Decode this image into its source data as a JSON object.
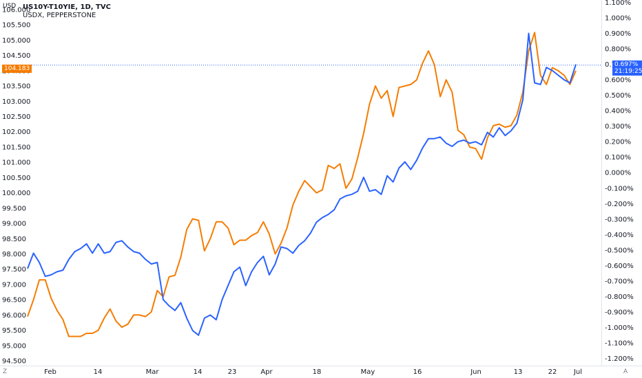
{
  "header": {
    "title": "US10Y-T10YIE, 1D, TVC",
    "subtitle": "USDX, PEPPERSTONE"
  },
  "left_axis_unit": "USD",
  "corner_left": "Z",
  "corner_right": "A",
  "badges": {
    "left_value": "104.183",
    "right_value": "0.697%",
    "right_time": "21:19:25"
  },
  "colors": {
    "orange": "#f57c00",
    "blue": "#2962ff",
    "badge_blue": "#2962ff"
  },
  "chart_data": {
    "type": "line",
    "x_ticks": [
      "Feb",
      "14",
      "Mar",
      "14",
      "23",
      "Apr",
      "18",
      "May",
      "16",
      "Jun",
      "13",
      "22",
      "Jul"
    ],
    "left_axis": {
      "min": 94.5,
      "max": 106.0,
      "ticks": [
        "106.000",
        "105.500",
        "105.000",
        "104.500",
        "104.000",
        "103.500",
        "103.000",
        "102.500",
        "102.000",
        "101.500",
        "101.000",
        "100.500",
        "100.000",
        "99.500",
        "99.000",
        "98.500",
        "98.000",
        "97.500",
        "97.000",
        "96.500",
        "96.000",
        "95.500",
        "95.000",
        "94.500"
      ]
    },
    "right_axis": {
      "min": -1.2,
      "max": 1.1,
      "ticks": [
        "1.100%",
        "1.000%",
        "0.900%",
        "0.800%",
        "0.700%",
        "0.600%",
        "0.500%",
        "0.400%",
        "0.300%",
        "0.200%",
        "0.100%",
        "0.000%",
        "-0.100%",
        "-0.200%",
        "-0.300%",
        "-0.400%",
        "-0.500%",
        "-0.600%",
        "-0.700%",
        "-0.800%",
        "-0.900%",
        "-1.000%",
        "-1.100%",
        "-1.200%"
      ]
    },
    "series": [
      {
        "name": "USDX, PEPPERSTONE",
        "axis": "left",
        "color": "#f57c00",
        "values": [
          95.95,
          96.5,
          97.15,
          97.15,
          96.55,
          96.15,
          95.85,
          95.3,
          95.3,
          95.3,
          95.4,
          95.4,
          95.5,
          95.9,
          96.2,
          95.8,
          95.6,
          95.7,
          96.0,
          96.0,
          95.95,
          96.1,
          96.8,
          96.6,
          97.25,
          97.3,
          97.9,
          98.8,
          99.15,
          99.1,
          98.1,
          98.5,
          99.05,
          99.05,
          98.85,
          98.3,
          98.45,
          98.45,
          98.6,
          98.7,
          99.05,
          98.65,
          98.0,
          98.35,
          98.85,
          99.6,
          100.05,
          100.4,
          100.2,
          100.0,
          100.1,
          100.9,
          100.8,
          100.95,
          100.15,
          100.45,
          101.15,
          101.95,
          102.9,
          103.5,
          103.1,
          103.35,
          102.5,
          103.45,
          103.5,
          103.55,
          103.7,
          104.25,
          104.65,
          104.2,
          103.15,
          103.7,
          103.3,
          102.05,
          101.9,
          101.5,
          101.45,
          101.1,
          101.8,
          102.2,
          102.25,
          102.15,
          102.2,
          102.55,
          103.3,
          104.65,
          105.25,
          103.85,
          103.55,
          104.1,
          104.0,
          103.85,
          103.55,
          104.0
        ]
      },
      {
        "name": "US10Y-T10YIE, 1D, TVC",
        "axis": "right",
        "color": "#2962ff",
        "values": [
          -0.62,
          -0.52,
          -0.58,
          -0.67,
          -0.66,
          -0.64,
          -0.63,
          -0.56,
          -0.51,
          -0.49,
          -0.46,
          -0.52,
          -0.46,
          -0.52,
          -0.51,
          -0.45,
          -0.44,
          -0.48,
          -0.51,
          -0.52,
          -0.56,
          -0.59,
          -0.58,
          -0.82,
          -0.86,
          -0.89,
          -0.84,
          -0.94,
          -1.02,
          -1.05,
          -0.94,
          -0.92,
          -0.95,
          -0.82,
          -0.73,
          -0.64,
          -0.61,
          -0.73,
          -0.64,
          -0.58,
          -0.54,
          -0.66,
          -0.59,
          -0.48,
          -0.49,
          -0.52,
          -0.47,
          -0.44,
          -0.39,
          -0.32,
          -0.29,
          -0.27,
          -0.24,
          -0.17,
          -0.15,
          -0.14,
          -0.12,
          -0.03,
          -0.12,
          -0.11,
          -0.14,
          -0.02,
          -0.06,
          0.03,
          0.07,
          0.02,
          0.08,
          0.16,
          0.22,
          0.22,
          0.23,
          0.19,
          0.17,
          0.2,
          0.21,
          0.19,
          0.2,
          0.18,
          0.26,
          0.23,
          0.29,
          0.24,
          0.27,
          0.32,
          0.47,
          0.9,
          0.58,
          0.57,
          0.68,
          0.66,
          0.63,
          0.6,
          0.58,
          0.7
        ]
      }
    ],
    "current_value_line": {
      "axis": "left",
      "value": 104.183
    }
  }
}
